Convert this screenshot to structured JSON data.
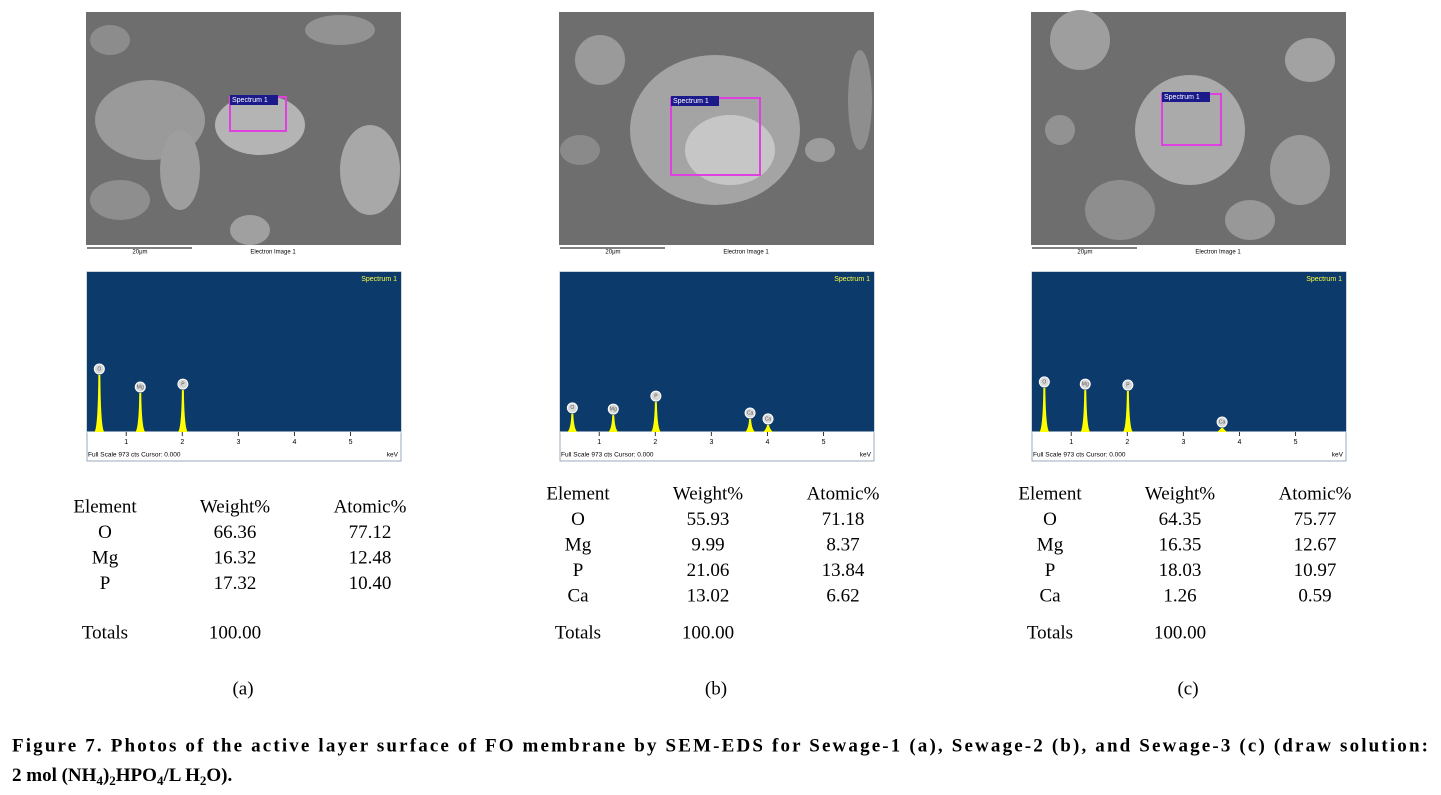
{
  "panels": [
    {
      "label": "(a)",
      "sem": {
        "spectrum_label": "Spectrum 1",
        "scale": "20μm",
        "image_label": "Electron Image 1"
      },
      "spectrum": {
        "title": "Spectrum 1",
        "footer": "Full Scale 973 cts Cursor: 0.000",
        "unit": "keV",
        "xlim": [
          0.3,
          5.9
        ],
        "xticks": [
          1,
          2,
          3,
          4,
          5
        ],
        "ylim": [
          0,
          973
        ],
        "peaks": [
          {
            "element": "O",
            "kev": 0.52,
            "counts": 347
          },
          {
            "element": "Mg",
            "kev": 1.25,
            "counts": 237
          },
          {
            "element": "P",
            "kev": 2.01,
            "counts": 255
          }
        ]
      },
      "table": {
        "header": [
          "Element",
          "Weight%",
          "Atomic%"
        ],
        "rows": [
          [
            "O",
            "66.36",
            "77.12"
          ],
          [
            "Mg",
            "16.32",
            "12.48"
          ],
          [
            "P",
            "17.32",
            "10.40"
          ]
        ],
        "totals": [
          "Totals",
          "100.00"
        ]
      }
    },
    {
      "label": "(b)",
      "sem": {
        "spectrum_label": "Spectrum 1",
        "scale": "20μm",
        "image_label": "Electron Image 1"
      },
      "spectrum": {
        "title": "Spectrum 1",
        "footer": "Full Scale 973 cts Cursor: 0.000",
        "unit": "keV",
        "xlim": [
          0.3,
          5.9
        ],
        "xticks": [
          1,
          2,
          3,
          4,
          5
        ],
        "ylim": [
          0,
          973
        ],
        "peaks": [
          {
            "element": "O",
            "kev": 0.52,
            "counts": 110
          },
          {
            "element": "Mg",
            "kev": 1.25,
            "counts": 103
          },
          {
            "element": "P",
            "kev": 2.01,
            "counts": 182
          },
          {
            "element": "Ca",
            "kev": 3.69,
            "counts": 79
          },
          {
            "element": "Ca",
            "kev": 4.01,
            "counts": 43
          }
        ]
      },
      "table": {
        "header": [
          "Element",
          "Weight%",
          "Atomic%"
        ],
        "rows": [
          [
            "O",
            "55.93",
            "71.18"
          ],
          [
            "Mg",
            "9.99",
            "8.37"
          ],
          [
            "P",
            "21.06",
            "13.84"
          ],
          [
            "Ca",
            "13.02",
            "6.62"
          ]
        ],
        "totals": [
          "Totals",
          "100.00"
        ]
      }
    },
    {
      "label": "(c)",
      "sem": {
        "spectrum_label": "Spectrum 1",
        "scale": "20μm",
        "image_label": "Electron Image 1"
      },
      "spectrum": {
        "title": "Spectrum 1",
        "footer": "Full Scale 973 cts Cursor: 0.000",
        "unit": "keV",
        "xlim": [
          0.3,
          5.9
        ],
        "xticks": [
          1,
          2,
          3,
          4,
          5
        ],
        "ylim": [
          0,
          973
        ],
        "peaks": [
          {
            "element": "O",
            "kev": 0.52,
            "counts": 268
          },
          {
            "element": "Mg",
            "kev": 1.25,
            "counts": 255
          },
          {
            "element": "P",
            "kev": 2.01,
            "counts": 249
          },
          {
            "element": "Ca",
            "kev": 3.69,
            "counts": 24
          }
        ]
      },
      "table": {
        "header": [
          "Element",
          "Weight%",
          "Atomic%"
        ],
        "rows": [
          [
            "O",
            "64.35",
            "75.77"
          ],
          [
            "Mg",
            "16.35",
            "12.67"
          ],
          [
            "P",
            "18.03",
            "10.97"
          ],
          [
            "Ca",
            "1.26",
            "0.59"
          ]
        ],
        "totals": [
          "Totals",
          "100.00"
        ]
      }
    }
  ],
  "caption": {
    "line1": "Figure 7. Photos of the active layer surface of FO membrane by SEM-EDS for Sewage-1 (a), Sewage-2 (b), and Sewage-3 (c) (draw solution:",
    "line2": [
      {
        "text": "2 mol (NH"
      },
      {
        "sub": "4"
      },
      {
        "text": ")"
      },
      {
        "sub": "2"
      },
      {
        "text": "HPO"
      },
      {
        "sub": "4"
      },
      {
        "text": "/L H"
      },
      {
        "sub": "2"
      },
      {
        "text": "O)."
      }
    ]
  }
}
